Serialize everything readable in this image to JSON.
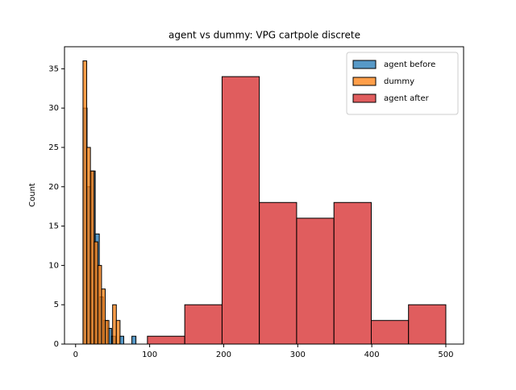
{
  "chart_data": {
    "type": "histogram",
    "title": "agent vs dummy: VPG cartpole discrete",
    "ylabel": "Count",
    "xlim": [
      -15,
      524
    ],
    "ylim": [
      0,
      37.8
    ],
    "xticks": [
      0,
      100,
      200,
      300,
      400,
      500
    ],
    "yticks": [
      0,
      5,
      10,
      15,
      20,
      25,
      30,
      35
    ],
    "legend": "upper right",
    "series": [
      {
        "name": "agent before",
        "color": "#1f77b4",
        "bins": [
          10,
          15.5,
          21,
          26.5,
          32,
          37.5,
          43,
          48.5,
          54,
          59.5,
          65,
          70.5,
          76,
          81.5
        ],
        "values": [
          30,
          20,
          22,
          14,
          6,
          3,
          2,
          1,
          0,
          1,
          0,
          0,
          1
        ]
      },
      {
        "name": "dummy",
        "color": "#ff7f0e",
        "bins": [
          10,
          15,
          20,
          25,
          30,
          35,
          40,
          45,
          50,
          55,
          60
        ],
        "values": [
          36,
          25,
          22,
          13,
          10,
          7,
          3,
          0,
          5,
          3
        ]
      },
      {
        "name": "agent after",
        "color": "#d62728",
        "bins": [
          97,
          147.4,
          197.8,
          248.1,
          298.5,
          348.9,
          399.3,
          449.6,
          500
        ],
        "values": [
          1,
          5,
          34,
          18,
          16,
          18,
          3,
          5
        ]
      }
    ]
  }
}
